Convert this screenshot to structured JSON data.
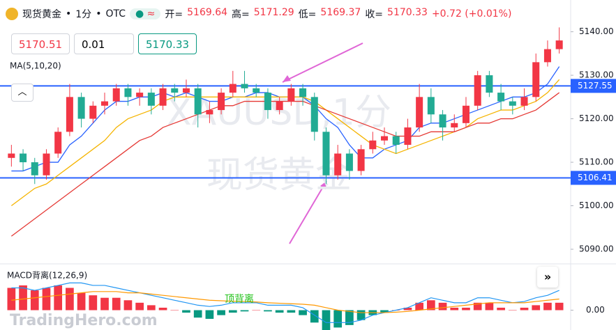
{
  "header": {
    "symbol": "现货黄金",
    "interval": "1分",
    "exchange": "OTC",
    "quotes": [
      {
        "label": "开=",
        "value": "5169.64"
      },
      {
        "label": "高=",
        "value": "5171.29"
      },
      {
        "label": "低=",
        "value": "5169.37"
      },
      {
        "label": "收=",
        "value": "5170.33"
      }
    ],
    "change": "+0.72 (+0.01%)",
    "sell": "5170.51",
    "spread": "0.01",
    "buy": "5170.33"
  },
  "branding": "TradingHero.com",
  "chart_data": [
    {
      "type": "candlestick",
      "ma_label": "MA(5,10,20)",
      "watermarks": [
        "XAUUSD,1分",
        "现货黄金"
      ],
      "up_color": "#f23645",
      "down_color": "#22ab94",
      "candles": [
        [
          5111,
          5114,
          5109,
          5112
        ],
        [
          5112,
          5113,
          5108,
          5110
        ],
        [
          5110,
          5111,
          5105,
          5107
        ],
        [
          5107,
          5113,
          5106,
          5112
        ],
        [
          5112,
          5118,
          5111,
          5117
        ],
        [
          5117,
          5128,
          5116,
          5125
        ],
        [
          5125,
          5126,
          5118,
          5120
        ],
        [
          5120,
          5124,
          5119,
          5123
        ],
        [
          5123,
          5126,
          5121,
          5124
        ],
        [
          5124,
          5128,
          5123,
          5127
        ],
        [
          5127,
          5128,
          5123,
          5125
        ],
        [
          5125,
          5127,
          5123,
          5126
        ],
        [
          5126,
          5127,
          5121,
          5123
        ],
        [
          5123,
          5128,
          5122,
          5127
        ],
        [
          5127,
          5128,
          5124,
          5126
        ],
        [
          5126,
          5129,
          5125,
          5127
        ],
        [
          5127,
          5128,
          5118,
          5121
        ],
        [
          5121,
          5124,
          5119,
          5122
        ],
        [
          5122,
          5127,
          5121,
          5126
        ],
        [
          5126,
          5131,
          5125,
          5128
        ],
        [
          5128,
          5131,
          5126,
          5127
        ],
        [
          5127,
          5128,
          5125,
          5126
        ],
        [
          5126,
          5127,
          5120,
          5122
        ],
        [
          5122,
          5125,
          5121,
          5124
        ],
        [
          5124,
          5128,
          5123,
          5127
        ],
        [
          5127,
          5128,
          5123,
          5125
        ],
        [
          5125,
          5126,
          5115,
          5117
        ],
        [
          5117,
          5118,
          5105,
          5107
        ],
        [
          5107,
          5114,
          5106,
          5112
        ],
        [
          5112,
          5113,
          5106,
          5108
        ],
        [
          5108,
          5114,
          5107,
          5113
        ],
        [
          5113,
          5117,
          5112,
          5115
        ],
        [
          5115,
          5118,
          5114,
          5116
        ],
        [
          5116,
          5117,
          5112,
          5114
        ],
        [
          5114,
          5120,
          5113,
          5118
        ],
        [
          5118,
          5128,
          5117,
          5125
        ],
        [
          5125,
          5127,
          5119,
          5121
        ],
        [
          5121,
          5122,
          5115,
          5118
        ],
        [
          5118,
          5121,
          5117,
          5119
        ],
        [
          5119,
          5125,
          5118,
          5123
        ],
        [
          5123,
          5131,
          5122,
          5130
        ],
        [
          5130,
          5131,
          5125,
          5126
        ],
        [
          5126,
          5128,
          5122,
          5124
        ],
        [
          5124,
          5125,
          5121,
          5123
        ],
        [
          5123,
          5127,
          5122,
          5125
        ],
        [
          5125,
          5135,
          5124,
          5133
        ],
        [
          5133,
          5138,
          5132,
          5136
        ],
        [
          5136,
          5141,
          5135,
          5138
        ]
      ],
      "moving_averages": [
        {
          "color": "#2962ff",
          "values": [
            5108,
            5108,
            5109,
            5110,
            5110,
            5114,
            5116,
            5119,
            5122,
            5124,
            5124,
            5125,
            5125,
            5126,
            5125,
            5126,
            5125,
            5124,
            5124,
            5125,
            5125,
            5126,
            5126,
            5125,
            5125,
            5125,
            5123,
            5120,
            5118,
            5114,
            5111,
            5111,
            5113,
            5114,
            5115,
            5118,
            5119,
            5119,
            5120,
            5121,
            5122,
            5123,
            5124,
            5125,
            5125,
            5126,
            5128,
            5132
          ]
        },
        {
          "color": "#f5b400",
          "values": [
            5100,
            5102,
            5104,
            5105,
            5107,
            5109,
            5111,
            5113,
            5115,
            5118,
            5120,
            5121,
            5122,
            5124,
            5125,
            5125,
            5125,
            5125,
            5125,
            5125,
            5125,
            5125,
            5125,
            5125,
            5125,
            5125,
            5124,
            5122,
            5120,
            5118,
            5116,
            5114,
            5113,
            5112,
            5113,
            5114,
            5115,
            5116,
            5117,
            5118,
            5120,
            5121,
            5122,
            5122,
            5123,
            5124,
            5126,
            5129
          ]
        },
        {
          "color": "#e53935",
          "values": [
            5093,
            5095,
            5097,
            5099,
            5101,
            5103,
            5105,
            5107,
            5109,
            5111,
            5113,
            5115,
            5116,
            5118,
            5119,
            5120,
            5121,
            5122,
            5123,
            5123,
            5124,
            5124,
            5124,
            5124,
            5124,
            5124,
            5123,
            5122,
            5121,
            5120,
            5119,
            5118,
            5117,
            5116,
            5116,
            5116,
            5117,
            5117,
            5117,
            5118,
            5119,
            5119,
            5120,
            5120,
            5121,
            5122,
            5124,
            5126
          ]
        }
      ],
      "levels": [
        {
          "value": 5127.55,
          "color": "#2962ff"
        },
        {
          "value": 5106.41,
          "color": "#2962ff"
        }
      ],
      "ylim": [
        5086.8,
        5147.3
      ],
      "yticks": [
        {
          "value": 5090,
          "label": "5090.00"
        },
        {
          "value": 5100,
          "label": "5100.00"
        },
        {
          "value": 5110,
          "label": "5110.00"
        },
        {
          "value": 5120,
          "label": "5120.00"
        },
        {
          "value": 5130,
          "label": "5130.00"
        },
        {
          "value": 5140,
          "label": "5140.00"
        }
      ]
    },
    {
      "type": "macd",
      "title": "MACD背离(12,26,9)",
      "annotation": "顶背离",
      "pos_color": "#f23645",
      "neg_color": "#089981",
      "histogram": [
        0.9,
        1.0,
        0.8,
        0.9,
        1.0,
        0.9,
        0.7,
        0.6,
        0.5,
        0.5,
        0.4,
        0.3,
        0.2,
        0.1,
        0.0,
        -0.1,
        -0.3,
        -0.35,
        -0.2,
        -0.1,
        -0.05,
        0.0,
        -0.05,
        -0.1,
        -0.1,
        -0.2,
        -0.5,
        -0.8,
        -0.7,
        -0.6,
        -0.4,
        -0.2,
        -0.1,
        0.0,
        0.1,
        0.3,
        0.4,
        0.3,
        0.1,
        0.1,
        0.3,
        0.3,
        0.1,
        0.0,
        0.1,
        0.2,
        0.3,
        0.3
      ],
      "lines": [
        {
          "color": "#2196f3",
          "values": [
            0.9,
            0.9,
            0.8,
            0.9,
            1.0,
            1.1,
            1.1,
            1.0,
            1.0,
            0.9,
            0.8,
            0.7,
            0.6,
            0.5,
            0.4,
            0.3,
            0.2,
            0.15,
            0.2,
            0.3,
            0.3,
            0.3,
            0.2,
            0.2,
            0.2,
            0.1,
            -0.2,
            -0.5,
            -0.5,
            -0.5,
            -0.4,
            -0.2,
            -0.1,
            0.0,
            0.1,
            0.3,
            0.5,
            0.4,
            0.3,
            0.3,
            0.5,
            0.5,
            0.4,
            0.3,
            0.35,
            0.5,
            0.6,
            0.8
          ]
        },
        {
          "color": "#ff9800",
          "values": [
            0.4,
            0.45,
            0.5,
            0.55,
            0.6,
            0.65,
            0.7,
            0.75,
            0.75,
            0.75,
            0.7,
            0.7,
            0.65,
            0.6,
            0.55,
            0.5,
            0.45,
            0.4,
            0.38,
            0.36,
            0.35,
            0.33,
            0.3,
            0.28,
            0.26,
            0.24,
            0.2,
            0.1,
            0.0,
            -0.05,
            -0.1,
            -0.1,
            -0.1,
            -0.08,
            -0.05,
            0.0,
            0.05,
            0.1,
            0.15,
            0.2,
            0.25,
            0.3,
            0.3,
            0.3,
            0.3,
            0.35,
            0.4,
            0.45
          ]
        }
      ],
      "ylim": [
        -0.8,
        1.7
      ],
      "yticks": [
        {
          "value": 0,
          "label": "0.00"
        }
      ]
    }
  ]
}
